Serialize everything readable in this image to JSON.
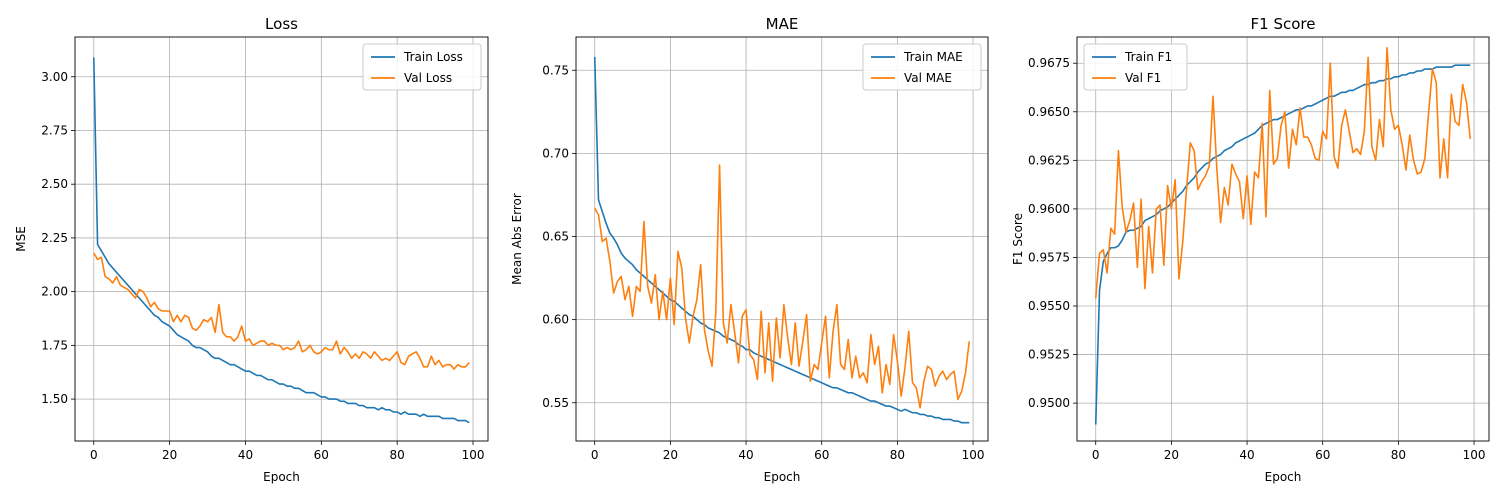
{
  "colors": {
    "train": "#1f77b4",
    "val": "#ff7f0e"
  },
  "chart_data": [
    {
      "type": "line",
      "title": "Loss",
      "xlabel": "Epoch",
      "ylabel": "MSE",
      "xlim": [
        -4.95,
        103.95
      ],
      "ylim": [
        1.305,
        3.185
      ],
      "xticks": [
        0,
        20,
        40,
        60,
        80,
        100
      ],
      "yticks": [
        1.5,
        1.75,
        2.0,
        2.25,
        2.5,
        2.75,
        3.0
      ],
      "ytick_decimals": 2,
      "grid": true,
      "legend_position": "top-right",
      "series": [
        {
          "name": "Train Loss",
          "color": "#1f77b4",
          "values": [
            3.09,
            2.22,
            2.19,
            2.16,
            2.13,
            2.11,
            2.09,
            2.07,
            2.05,
            2.03,
            2.01,
            1.99,
            1.97,
            1.95,
            1.93,
            1.91,
            1.89,
            1.88,
            1.86,
            1.85,
            1.84,
            1.82,
            1.8,
            1.79,
            1.78,
            1.77,
            1.75,
            1.74,
            1.74,
            1.73,
            1.72,
            1.7,
            1.69,
            1.69,
            1.68,
            1.67,
            1.66,
            1.66,
            1.65,
            1.64,
            1.63,
            1.63,
            1.62,
            1.61,
            1.61,
            1.6,
            1.59,
            1.59,
            1.58,
            1.57,
            1.57,
            1.56,
            1.56,
            1.55,
            1.55,
            1.54,
            1.53,
            1.53,
            1.53,
            1.52,
            1.51,
            1.51,
            1.5,
            1.5,
            1.5,
            1.49,
            1.49,
            1.48,
            1.48,
            1.48,
            1.47,
            1.47,
            1.46,
            1.46,
            1.46,
            1.45,
            1.46,
            1.45,
            1.45,
            1.44,
            1.44,
            1.43,
            1.44,
            1.43,
            1.43,
            1.43,
            1.42,
            1.43,
            1.42,
            1.42,
            1.42,
            1.42,
            1.41,
            1.41,
            1.41,
            1.41,
            1.4,
            1.4,
            1.4,
            1.39
          ]
        },
        {
          "name": "Val Loss",
          "color": "#ff7f0e",
          "values": [
            2.18,
            2.15,
            2.16,
            2.07,
            2.06,
            2.04,
            2.07,
            2.03,
            2.02,
            2.01,
            1.99,
            1.97,
            2.01,
            2.0,
            1.97,
            1.93,
            1.95,
            1.92,
            1.91,
            1.91,
            1.91,
            1.86,
            1.89,
            1.86,
            1.89,
            1.88,
            1.83,
            1.82,
            1.84,
            1.87,
            1.86,
            1.88,
            1.81,
            1.94,
            1.81,
            1.79,
            1.79,
            1.77,
            1.79,
            1.84,
            1.77,
            1.78,
            1.75,
            1.76,
            1.77,
            1.77,
            1.75,
            1.76,
            1.75,
            1.75,
            1.73,
            1.74,
            1.73,
            1.74,
            1.77,
            1.72,
            1.73,
            1.75,
            1.72,
            1.71,
            1.72,
            1.74,
            1.73,
            1.73,
            1.77,
            1.71,
            1.74,
            1.72,
            1.69,
            1.71,
            1.69,
            1.72,
            1.71,
            1.69,
            1.72,
            1.7,
            1.68,
            1.69,
            1.68,
            1.7,
            1.72,
            1.67,
            1.66,
            1.7,
            1.71,
            1.72,
            1.69,
            1.65,
            1.65,
            1.7,
            1.66,
            1.68,
            1.65,
            1.66,
            1.66,
            1.64,
            1.66,
            1.65,
            1.65,
            1.67
          ]
        }
      ]
    },
    {
      "type": "line",
      "title": "MAE",
      "xlabel": "Epoch",
      "ylabel": "Mean Abs Error",
      "xlim": [
        -4.95,
        103.95
      ],
      "ylim": [
        0.527,
        0.77
      ],
      "xticks": [
        0,
        20,
        40,
        60,
        80,
        100
      ],
      "yticks": [
        0.55,
        0.6,
        0.65,
        0.7,
        0.75
      ],
      "ytick_decimals": 2,
      "grid": true,
      "legend_position": "top-right",
      "series": [
        {
          "name": "Train MAE",
          "color": "#1f77b4",
          "values": [
            0.758,
            0.672,
            0.665,
            0.658,
            0.652,
            0.649,
            0.645,
            0.64,
            0.637,
            0.635,
            0.633,
            0.63,
            0.628,
            0.626,
            0.624,
            0.622,
            0.62,
            0.618,
            0.616,
            0.614,
            0.612,
            0.611,
            0.609,
            0.607,
            0.605,
            0.603,
            0.602,
            0.6,
            0.598,
            0.597,
            0.595,
            0.594,
            0.593,
            0.592,
            0.59,
            0.589,
            0.588,
            0.587,
            0.585,
            0.584,
            0.582,
            0.582,
            0.58,
            0.579,
            0.578,
            0.577,
            0.576,
            0.575,
            0.574,
            0.573,
            0.572,
            0.571,
            0.57,
            0.569,
            0.568,
            0.567,
            0.566,
            0.565,
            0.564,
            0.563,
            0.562,
            0.561,
            0.56,
            0.559,
            0.559,
            0.558,
            0.557,
            0.556,
            0.556,
            0.555,
            0.554,
            0.553,
            0.552,
            0.551,
            0.551,
            0.55,
            0.549,
            0.548,
            0.548,
            0.547,
            0.546,
            0.545,
            0.546,
            0.545,
            0.544,
            0.544,
            0.543,
            0.543,
            0.542,
            0.542,
            0.541,
            0.541,
            0.54,
            0.54,
            0.54,
            0.539,
            0.539,
            0.538,
            0.538,
            0.538
          ]
        },
        {
          "name": "Val MAE",
          "color": "#ff7f0e",
          "values": [
            0.667,
            0.663,
            0.647,
            0.649,
            0.635,
            0.616,
            0.623,
            0.626,
            0.612,
            0.62,
            0.602,
            0.62,
            0.617,
            0.659,
            0.62,
            0.61,
            0.627,
            0.6,
            0.617,
            0.6,
            0.625,
            0.597,
            0.641,
            0.631,
            0.601,
            0.586,
            0.602,
            0.612,
            0.633,
            0.594,
            0.581,
            0.572,
            0.604,
            0.693,
            0.598,
            0.586,
            0.609,
            0.592,
            0.574,
            0.602,
            0.606,
            0.579,
            0.576,
            0.564,
            0.605,
            0.568,
            0.598,
            0.563,
            0.601,
            0.577,
            0.609,
            0.589,
            0.573,
            0.598,
            0.572,
            0.587,
            0.603,
            0.563,
            0.573,
            0.57,
            0.586,
            0.602,
            0.565,
            0.593,
            0.609,
            0.573,
            0.57,
            0.588,
            0.565,
            0.578,
            0.565,
            0.568,
            0.562,
            0.591,
            0.573,
            0.584,
            0.556,
            0.573,
            0.561,
            0.591,
            0.575,
            0.554,
            0.571,
            0.593,
            0.562,
            0.559,
            0.547,
            0.563,
            0.572,
            0.57,
            0.56,
            0.566,
            0.569,
            0.564,
            0.567,
            0.569,
            0.552,
            0.557,
            0.568,
            0.587
          ]
        }
      ]
    },
    {
      "type": "line",
      "title": "F1 Score",
      "xlabel": "Epoch",
      "ylabel": "F1 Score",
      "xlim": [
        -4.95,
        103.95
      ],
      "ylim": [
        0.94805,
        0.96885
      ],
      "xticks": [
        0,
        20,
        40,
        60,
        80,
        100
      ],
      "yticks": [
        0.95,
        0.9525,
        0.955,
        0.9575,
        0.96,
        0.9625,
        0.965,
        0.9675
      ],
      "ytick_decimals": 4,
      "grid": true,
      "legend_position": "top-left",
      "series": [
        {
          "name": "Train F1",
          "color": "#1f77b4",
          "values": [
            0.9489,
            0.9558,
            0.9573,
            0.9577,
            0.958,
            0.958,
            0.9581,
            0.9584,
            0.9588,
            0.9589,
            0.9589,
            0.959,
            0.9591,
            0.9594,
            0.9595,
            0.9596,
            0.9597,
            0.9599,
            0.96,
            0.9601,
            0.9603,
            0.9605,
            0.9607,
            0.9609,
            0.9612,
            0.9614,
            0.9616,
            0.9619,
            0.9621,
            0.9623,
            0.9624,
            0.9626,
            0.9627,
            0.9628,
            0.963,
            0.9631,
            0.9632,
            0.9634,
            0.9635,
            0.9636,
            0.9637,
            0.9638,
            0.9639,
            0.9641,
            0.9643,
            0.9644,
            0.9645,
            0.9646,
            0.9646,
            0.9647,
            0.9648,
            0.9649,
            0.965,
            0.9651,
            0.9651,
            0.9652,
            0.9653,
            0.9653,
            0.9654,
            0.9655,
            0.9656,
            0.9657,
            0.9658,
            0.9658,
            0.9659,
            0.966,
            0.966,
            0.9661,
            0.9661,
            0.9662,
            0.9663,
            0.9664,
            0.9664,
            0.9665,
            0.9665,
            0.9666,
            0.9666,
            0.9667,
            0.9667,
            0.9668,
            0.9668,
            0.9669,
            0.9669,
            0.967,
            0.967,
            0.9671,
            0.9671,
            0.9672,
            0.9672,
            0.9672,
            0.9673,
            0.9673,
            0.9673,
            0.9673,
            0.9673,
            0.9674,
            0.9674,
            0.9674,
            0.9674,
            0.9674
          ]
        },
        {
          "name": "Val F1",
          "color": "#ff7f0e",
          "values": [
            0.9554,
            0.9577,
            0.9579,
            0.9567,
            0.959,
            0.9587,
            0.963,
            0.9601,
            0.9588,
            0.9594,
            0.9603,
            0.957,
            0.9605,
            0.9559,
            0.9591,
            0.9567,
            0.96,
            0.9602,
            0.9571,
            0.9612,
            0.96,
            0.9615,
            0.9564,
            0.9583,
            0.961,
            0.9634,
            0.963,
            0.961,
            0.9614,
            0.9617,
            0.9622,
            0.9658,
            0.9621,
            0.9593,
            0.9611,
            0.9602,
            0.9623,
            0.9618,
            0.9614,
            0.9595,
            0.9617,
            0.9592,
            0.9619,
            0.9616,
            0.9644,
            0.9596,
            0.9661,
            0.9623,
            0.9626,
            0.9643,
            0.965,
            0.9621,
            0.9641,
            0.9633,
            0.9652,
            0.9637,
            0.9637,
            0.9633,
            0.9626,
            0.9625,
            0.964,
            0.9636,
            0.9675,
            0.9627,
            0.9621,
            0.9643,
            0.9651,
            0.964,
            0.9629,
            0.9631,
            0.9628,
            0.964,
            0.9678,
            0.9632,
            0.9625,
            0.9646,
            0.9632,
            0.9683,
            0.9651,
            0.9641,
            0.9643,
            0.9633,
            0.962,
            0.9638,
            0.9625,
            0.9618,
            0.9619,
            0.9626,
            0.965,
            0.9672,
            0.9665,
            0.9616,
            0.9636,
            0.9616,
            0.9659,
            0.9645,
            0.9643,
            0.9664,
            0.9655,
            0.9636
          ]
        }
      ]
    }
  ]
}
